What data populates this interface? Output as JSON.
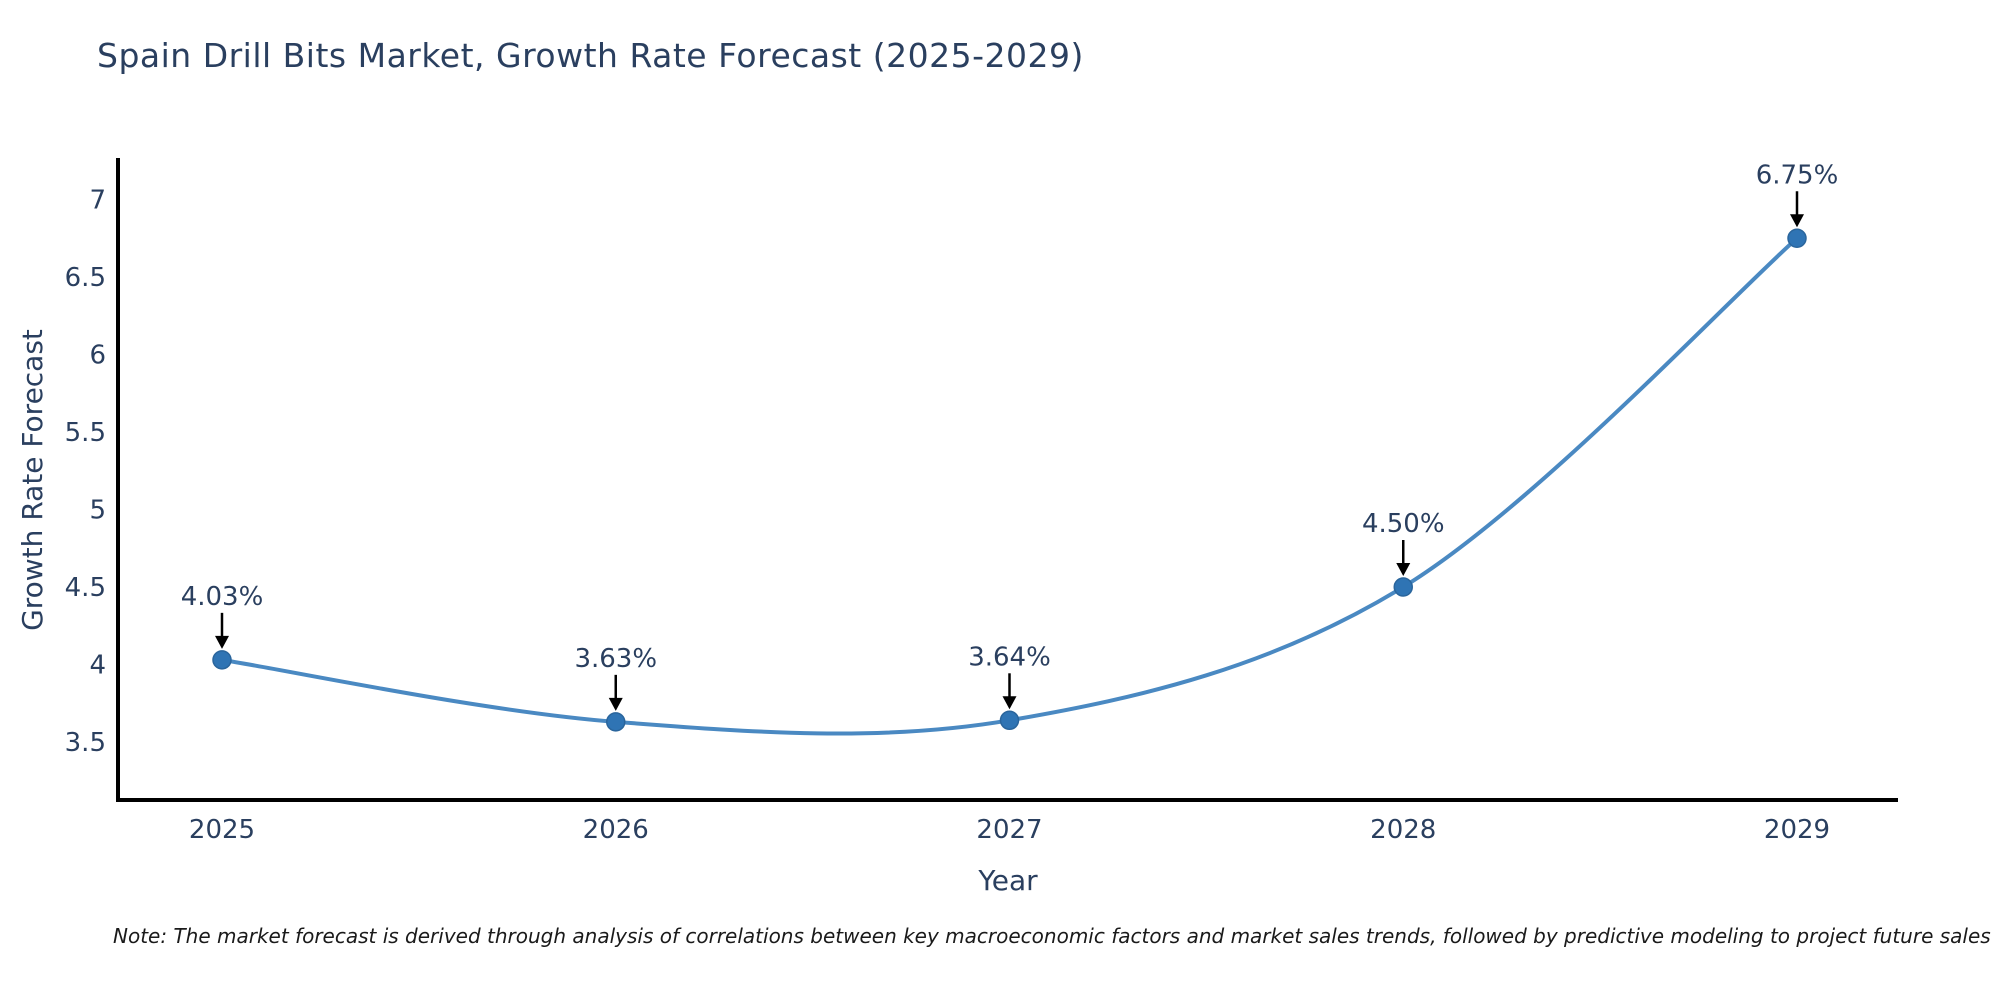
{
  "figure": {
    "footnote": "Note: The market forecast is derived through analysis of correlations between key macroeconomic factors and market sales trends, followed by predictive modeling to project future sales"
  },
  "chart_data": {
    "type": "line",
    "title": "Spain Drill Bits Market, Growth Rate Forecast (2025-2029)",
    "xlabel": "Year",
    "ylabel": "Growth Rate Forecast",
    "categories": [
      "2025",
      "2026",
      "2027",
      "2028",
      "2029"
    ],
    "values": [
      4.03,
      3.63,
      3.64,
      4.5,
      6.75
    ],
    "point_labels": [
      "4.03%",
      "3.63%",
      "3.64%",
      "4.50%",
      "6.75%"
    ],
    "yticks": [
      "3.5",
      "4",
      "4.5",
      "5",
      "5.5",
      "6",
      "6.5",
      "7"
    ],
    "ytick_values": [
      3.5,
      4,
      4.5,
      5,
      5.5,
      6,
      6.5,
      7
    ],
    "ylim": [
      3.12,
      7.26
    ],
    "line_shape": "spline",
    "grid": false,
    "legend": "none",
    "annotations": "value labels with down arrows above each point",
    "colors": {
      "line": "#4a89c2",
      "marker": "#2f74b4",
      "marker_border": "#2a659c",
      "axis": "#000000",
      "text": "#2a3f5f",
      "arrow": "#000000",
      "background": "#ffffff"
    }
  }
}
